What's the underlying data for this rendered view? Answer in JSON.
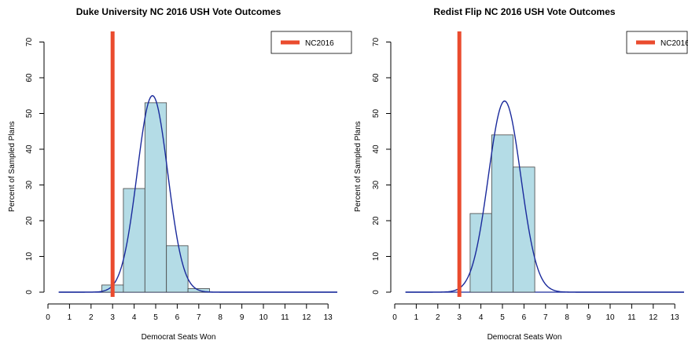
{
  "chart_data": [
    {
      "type": "bar",
      "title": "Duke University NC 2016 USH Vote Outcomes",
      "xlabel": "Democrat Seats Won",
      "ylabel": "Percent of Sampled Plans",
      "xlim": [
        0,
        13.5
      ],
      "ylim": [
        0,
        70
      ],
      "xticks": [
        "0",
        "1",
        "2",
        "3",
        "4",
        "5",
        "6",
        "7",
        "8",
        "9",
        "10",
        "11",
        "12",
        "13"
      ],
      "yticks": [
        "0",
        "10",
        "20",
        "30",
        "40",
        "50",
        "60",
        "70"
      ],
      "categories": [
        "3",
        "4",
        "5",
        "6",
        "7"
      ],
      "values": [
        2,
        29,
        53,
        13,
        1
      ],
      "marker": {
        "name": "NC2016",
        "x": 3
      },
      "curve": {
        "mean": 4.85,
        "peak": 55
      },
      "legend_position": "top-right",
      "grid": false,
      "colors": {
        "bars": "#b4dce6",
        "curve": "#1a2a9c",
        "marker": "#ea4b2e"
      }
    },
    {
      "type": "bar",
      "title": "Redist Flip NC 2016 USH Vote Outcomes",
      "xlabel": "Democrat Seats Won",
      "ylabel": "Percent of Sampled Plans",
      "xlim": [
        0,
        13.5
      ],
      "ylim": [
        0,
        70
      ],
      "xticks": [
        "0",
        "1",
        "2",
        "3",
        "4",
        "5",
        "6",
        "7",
        "8",
        "9",
        "10",
        "11",
        "12",
        "13"
      ],
      "yticks": [
        "0",
        "10",
        "20",
        "30",
        "40",
        "50",
        "60",
        "70"
      ],
      "categories": [
        "4",
        "5",
        "6"
      ],
      "values": [
        22,
        44,
        35
      ],
      "marker": {
        "name": "NC2016",
        "x": 3
      },
      "curve": {
        "mean": 5.1,
        "peak": 53.5
      },
      "legend_position": "top-right",
      "grid": false,
      "colors": {
        "bars": "#b4dce6",
        "curve": "#1a2a9c",
        "marker": "#ea4b2e"
      }
    }
  ]
}
